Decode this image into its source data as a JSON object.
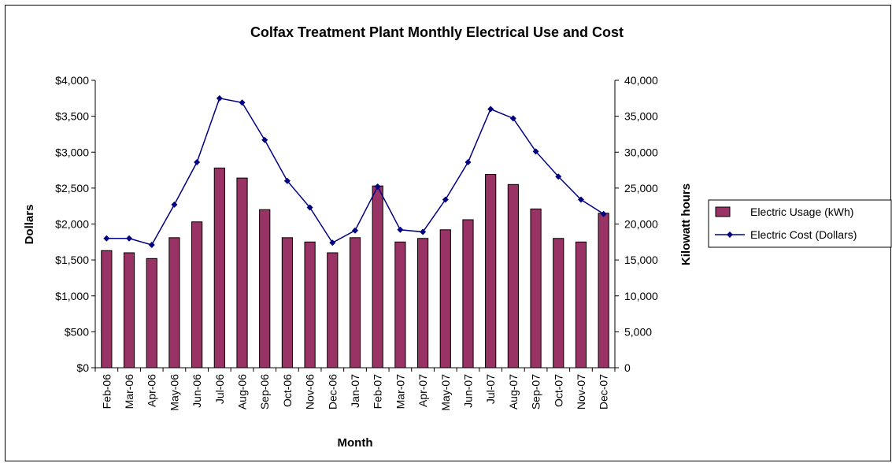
{
  "chart_data": {
    "type": "bar",
    "title": "Colfax Treatment Plant Monthly Electrical Use and Cost",
    "xlabel": "Month",
    "ylabel": "Dollars",
    "y2label": "Kilowatt hours",
    "categories": [
      "Feb-06",
      "Mar-06",
      "Apr-06",
      "May-06",
      "Jun-06",
      "Jul-06",
      "Aug-06",
      "Sep-06",
      "Oct-06",
      "Nov-06",
      "Dec-06",
      "Jan-07",
      "Feb-07",
      "Mar-07",
      "Apr-07",
      "May-07",
      "Jun-07",
      "Jul-07",
      "Aug-07",
      "Sep-07",
      "Oct-07",
      "Nov-07",
      "Dec-07"
    ],
    "ylim": [
      0,
      4000
    ],
    "y2lim": [
      0,
      40000
    ],
    "y_ticks": [
      "$0",
      "$500",
      "$1,000",
      "$1,500",
      "$2,000",
      "$2,500",
      "$3,000",
      "$3,500",
      "$4,000"
    ],
    "y2_ticks": [
      "0",
      "5,000",
      "10,000",
      "15,000",
      "20,000",
      "25,000",
      "30,000",
      "35,000",
      "40,000"
    ],
    "legend_position": "right",
    "grid": false,
    "series": [
      {
        "name": "Electric Usage (kWh)",
        "type": "bar",
        "axis": "right",
        "color": "#993366",
        "values": [
          16300,
          16000,
          15200,
          18100,
          20300,
          27800,
          26400,
          22000,
          18100,
          17500,
          16000,
          18100,
          25300,
          17500,
          18000,
          19200,
          20600,
          26900,
          25500,
          22100,
          18000,
          17500,
          21500
        ]
      },
      {
        "name": "Electric Cost (Dollars)",
        "type": "line",
        "axis": "left",
        "color": "#000080",
        "marker": "diamond",
        "values": [
          1800,
          1800,
          1710,
          2270,
          2860,
          3750,
          3690,
          3170,
          2600,
          2230,
          1740,
          1910,
          2520,
          1920,
          1890,
          2340,
          2860,
          3600,
          3470,
          3010,
          2660,
          2340,
          2140
        ]
      }
    ]
  }
}
